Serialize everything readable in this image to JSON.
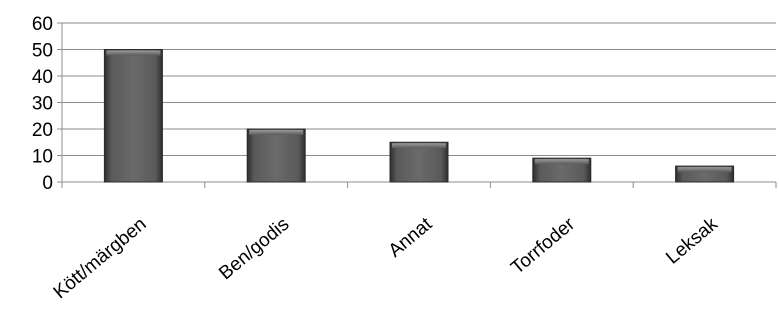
{
  "chart_data": {
    "type": "bar",
    "categories": [
      "Kött/märgben",
      "Ben/godis",
      "Annat",
      "Torrfoder",
      "Leksak"
    ],
    "values": [
      50,
      20,
      15,
      9,
      6
    ],
    "title": "",
    "xlabel": "",
    "ylabel": "",
    "ylim": [
      0,
      60
    ],
    "yticks": [
      "0",
      "10",
      "20",
      "30",
      "40",
      "50",
      "60"
    ],
    "grid": true,
    "legend": "none",
    "colors": {
      "bar_top": "#8a8a8a",
      "bar_mid": "#4a4a4a",
      "bar_edge": "#2a2a2a",
      "grid": "#8c8c8c",
      "axis": "#8c8c8c"
    }
  }
}
